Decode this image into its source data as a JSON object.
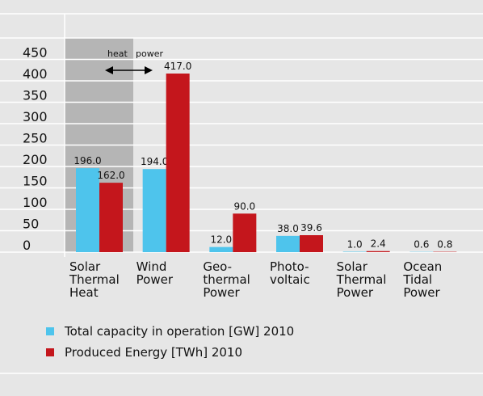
{
  "chart_data": {
    "type": "bar",
    "categories": [
      "Solar\nThermal\nHeat",
      "Wind\nPower",
      "Geo-\nthermal\nPower",
      "Photo-\nvoltaic",
      "Solar\nThermal\nPower",
      "Ocean\nTidal\nPower"
    ],
    "series": [
      {
        "name": "Total capacity in operation [GW] 2010",
        "color": "#4ec4ec",
        "values": [
          196,
          194,
          12,
          38,
          1,
          0.6
        ],
        "value_labels": [
          "196.0",
          "194.0",
          "12.0",
          "38.0",
          "1.0",
          "0.6"
        ]
      },
      {
        "name": "Produced Energy [TWh] 2010",
        "color": "#c4161c",
        "values": [
          162,
          417,
          90,
          39.6,
          2.4,
          0.8
        ],
        "value_labels": [
          "162.0",
          "417.0",
          "90.0",
          "39.6",
          "2.4",
          "0.8"
        ]
      }
    ],
    "ylim": [
      0,
      500
    ],
    "yticks": [
      0,
      50,
      100,
      150,
      200,
      250,
      300,
      350,
      400,
      450
    ],
    "grid": true,
    "annotations": [
      "heat",
      "power"
    ]
  }
}
